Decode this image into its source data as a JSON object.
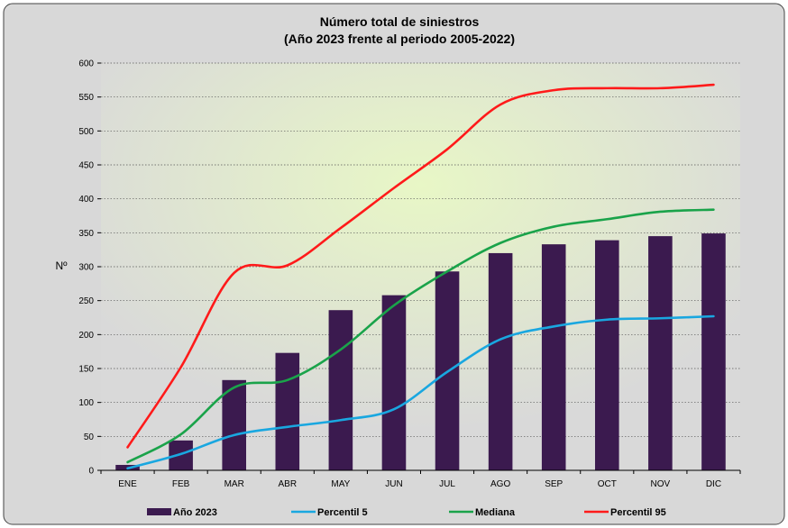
{
  "chart_data": {
    "type": "bar",
    "title": "Número total de siniestros",
    "subtitle": "(Año 2023 frente al periodo 2005-2022)",
    "ylabel": "Nº",
    "xlabel": "",
    "ylim": [
      0,
      600
    ],
    "yticks": [
      0,
      50,
      100,
      150,
      200,
      250,
      300,
      350,
      400,
      450,
      500,
      550,
      600
    ],
    "grid": true,
    "legend_position": "bottom",
    "categories": [
      "ENE",
      "FEB",
      "MAR",
      "ABR",
      "MAY",
      "JUN",
      "JUL",
      "AGO",
      "SEP",
      "OCT",
      "NOV",
      "DIC"
    ],
    "series": [
      {
        "name": "Año 2023",
        "kind": "bar",
        "color": "#3b1a4f",
        "values": [
          8,
          44,
          133,
          173,
          236,
          258,
          293,
          320,
          333,
          339,
          345,
          349
        ]
      },
      {
        "name": "Percentil 5",
        "kind": "line",
        "color": "#19a7e0",
        "values": [
          3,
          24,
          52,
          64,
          74,
          90,
          145,
          193,
          212,
          222,
          224,
          227
        ]
      },
      {
        "name": "Mediana",
        "kind": "line",
        "color": "#1aa34a",
        "values": [
          12,
          53,
          122,
          133,
          178,
          243,
          293,
          335,
          359,
          370,
          381,
          384
        ]
      },
      {
        "name": "Percentil 95",
        "kind": "line",
        "color": "#ff1a1a",
        "values": [
          34,
          152,
          291,
          302,
          357,
          416,
          473,
          539,
          560,
          563,
          563,
          568
        ]
      }
    ]
  }
}
